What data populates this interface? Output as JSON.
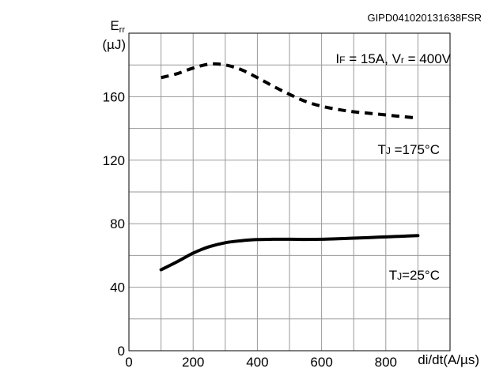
{
  "chart_data": {
    "type": "line",
    "figure_id": "GIPD041020131638FSR",
    "ylabel_main": "E",
    "ylabel_sub": "rr",
    "ylabel_unit": "(µJ)",
    "xlabel": "di/dt(A/µs)",
    "xlim": [
      0,
      1000
    ],
    "ylim": [
      0,
      200
    ],
    "x_ticks": [
      0,
      200,
      400,
      600,
      800
    ],
    "y_ticks": [
      0,
      40,
      80,
      120,
      160
    ],
    "grid": true,
    "conditions": {
      "i_main": "I",
      "i_sub": "F",
      "i_value": " = 15A, V",
      "v_sub": "r",
      "v_value": " = 400V"
    },
    "series": [
      {
        "label_main": "T",
        "label_sub": "J",
        "label_value": " =175°C",
        "style": "dashed",
        "x": [
          100,
          150,
          200,
          250,
          300,
          350,
          400,
          450,
          500,
          550,
          600,
          650,
          700,
          750,
          800,
          850,
          900
        ],
        "y": [
          172,
          174.5,
          178,
          180.5,
          180,
          177,
          172,
          166.5,
          161.5,
          157,
          154,
          152,
          150.5,
          149.5,
          148.5,
          147.5,
          146.5
        ]
      },
      {
        "label_main": "T",
        "label_sub": "J",
        "label_value": "=25°C",
        "style": "solid",
        "x": [
          100,
          150,
          200,
          250,
          300,
          350,
          400,
          450,
          500,
          550,
          600,
          650,
          700,
          750,
          800,
          850,
          900
        ],
        "y": [
          51,
          56,
          61.5,
          65.5,
          68,
          69.3,
          70,
          70.2,
          70.2,
          70.1,
          70.2,
          70.5,
          70.9,
          71.3,
          71.7,
          72.1,
          72.5
        ]
      }
    ]
  }
}
